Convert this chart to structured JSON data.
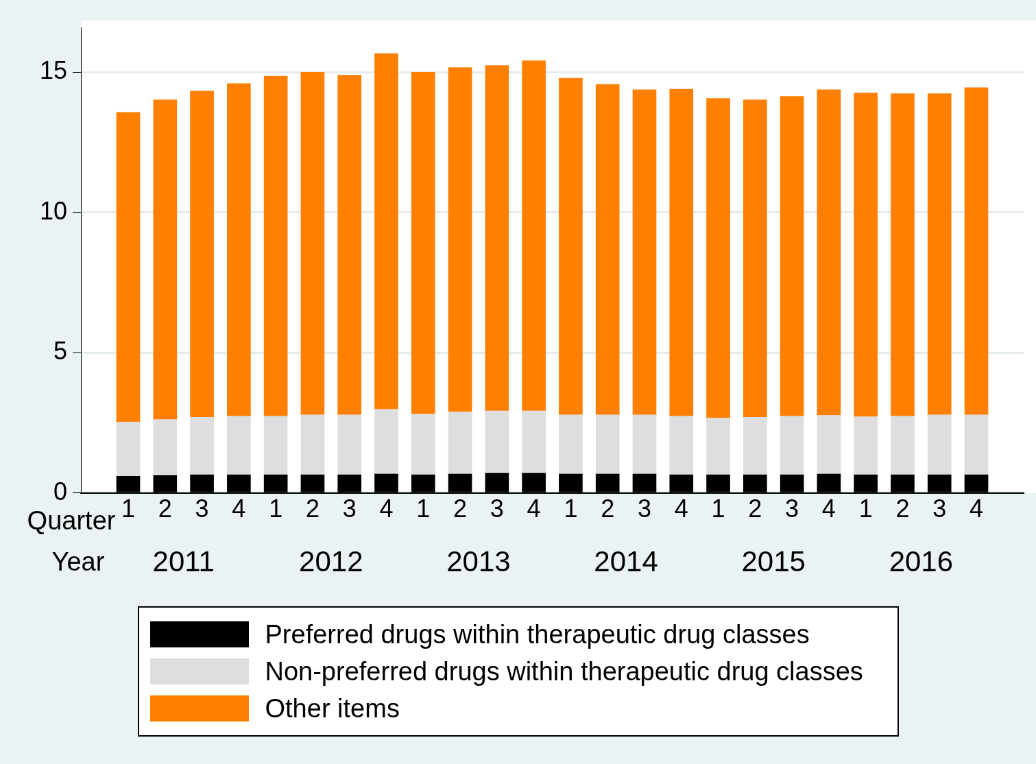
{
  "chart_data": {
    "type": "bar",
    "stacked": true,
    "categories": [
      "1",
      "2",
      "3",
      "4",
      "1",
      "2",
      "3",
      "4",
      "1",
      "2",
      "3",
      "4",
      "1",
      "2",
      "3",
      "4",
      "1",
      "2",
      "3",
      "4",
      "1",
      "2",
      "3",
      "4"
    ],
    "series": [
      {
        "name": "Preferred drugs within therapeutic drug classes",
        "color": "#000000",
        "values": [
          0.6,
          0.62,
          0.65,
          0.65,
          0.65,
          0.65,
          0.65,
          0.68,
          0.65,
          0.68,
          0.7,
          0.7,
          0.68,
          0.68,
          0.68,
          0.65,
          0.65,
          0.65,
          0.65,
          0.68,
          0.65,
          0.65,
          0.65,
          0.65
        ]
      },
      {
        "name": "Non-preferred drugs within therapeutic drug classes",
        "color": "#dedede",
        "values": [
          1.93,
          2.0,
          2.05,
          2.09,
          2.09,
          2.14,
          2.14,
          2.3,
          2.16,
          2.21,
          2.23,
          2.23,
          2.11,
          2.11,
          2.11,
          2.09,
          2.02,
          2.05,
          2.09,
          2.09,
          2.07,
          2.09,
          2.14,
          2.14
        ]
      },
      {
        "name": "Other items",
        "color": "#ff7f00",
        "values": [
          11.04,
          11.4,
          11.63,
          11.86,
          12.12,
          12.21,
          12.11,
          12.69,
          12.19,
          12.28,
          12.31,
          12.48,
          12.0,
          11.78,
          11.59,
          11.66,
          11.4,
          11.32,
          11.4,
          11.61,
          11.54,
          11.5,
          11.45,
          11.66
        ]
      }
    ],
    "ylim": [
      0,
      16.6
    ],
    "yticks": [
      0,
      5,
      10,
      15
    ],
    "grid": "y",
    "legend": "bottom",
    "annotations": [
      "Quarter",
      "Year",
      "2011",
      "2012",
      "2013",
      "2014",
      "2015",
      "2016"
    ]
  }
}
